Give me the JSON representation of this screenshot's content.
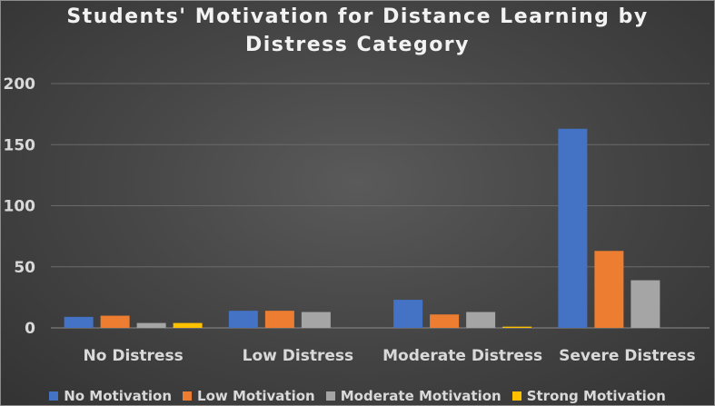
{
  "chart_data": {
    "type": "bar",
    "title_line1": "Students' Motivation for Distance Learning by",
    "title_line2": "Distress Category",
    "xlabel": "",
    "ylabel": "",
    "categories": [
      "No Distress",
      "Low Distress",
      "Moderate Distress",
      "Severe Distress"
    ],
    "series": [
      {
        "name": "No Motivation",
        "color": "#4472c4",
        "values": [
          9,
          14,
          23,
          163
        ]
      },
      {
        "name": "Low Motivation",
        "color": "#ed7d31",
        "values": [
          10,
          14,
          11,
          63
        ]
      },
      {
        "name": "Moderate Motivation",
        "color": "#a5a5a5",
        "values": [
          4,
          13,
          13,
          39
        ]
      },
      {
        "name": "Strong Motivation",
        "color": "#ffc000",
        "values": [
          4,
          0,
          1,
          0
        ]
      }
    ],
    "ylim": [
      0,
      200
    ],
    "yticks": [
      0,
      50,
      100,
      150,
      200
    ],
    "grid": true,
    "legend": "bottom"
  }
}
